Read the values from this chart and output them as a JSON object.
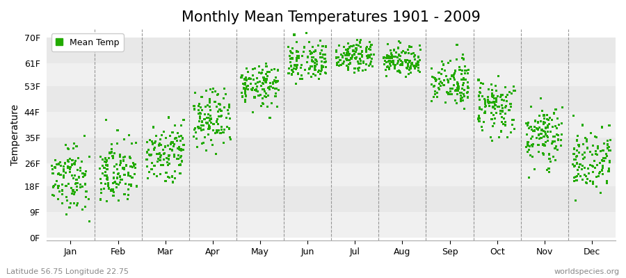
{
  "title": "Monthly Mean Temperatures 1901 - 2009",
  "ylabel": "Temperature",
  "xlabel_labels": [
    "Jan",
    "Feb",
    "Mar",
    "Apr",
    "May",
    "Jun",
    "Jul",
    "Aug",
    "Sep",
    "Oct",
    "Nov",
    "Dec"
  ],
  "ytick_labels": [
    "0F",
    "9F",
    "18F",
    "26F",
    "35F",
    "44F",
    "53F",
    "61F",
    "70F"
  ],
  "ytick_values": [
    0,
    9,
    18,
    26,
    35,
    44,
    53,
    61,
    70
  ],
  "dot_color": "#22aa00",
  "background_color": "#ffffff",
  "plot_bg_color": "#f2f2f2",
  "plot_bg_alt_color": "#ffffff",
  "legend_label": "Mean Temp",
  "bottom_left_text": "Latitude 56.75 Longitude 22.75",
  "bottom_right_text": "worldspecies.org",
  "title_fontsize": 15,
  "axis_fontsize": 9,
  "n_years": 109,
  "monthly_means": [
    22,
    24,
    30,
    42,
    53,
    61,
    64,
    62,
    54,
    46,
    36,
    27
  ],
  "monthly_stds": [
    6,
    6,
    5,
    5,
    4,
    4,
    3,
    3,
    4,
    5,
    5,
    6
  ],
  "vline_color": "#808080",
  "hband_colors": [
    "#f0f0f0",
    "#e8e8e8"
  ]
}
